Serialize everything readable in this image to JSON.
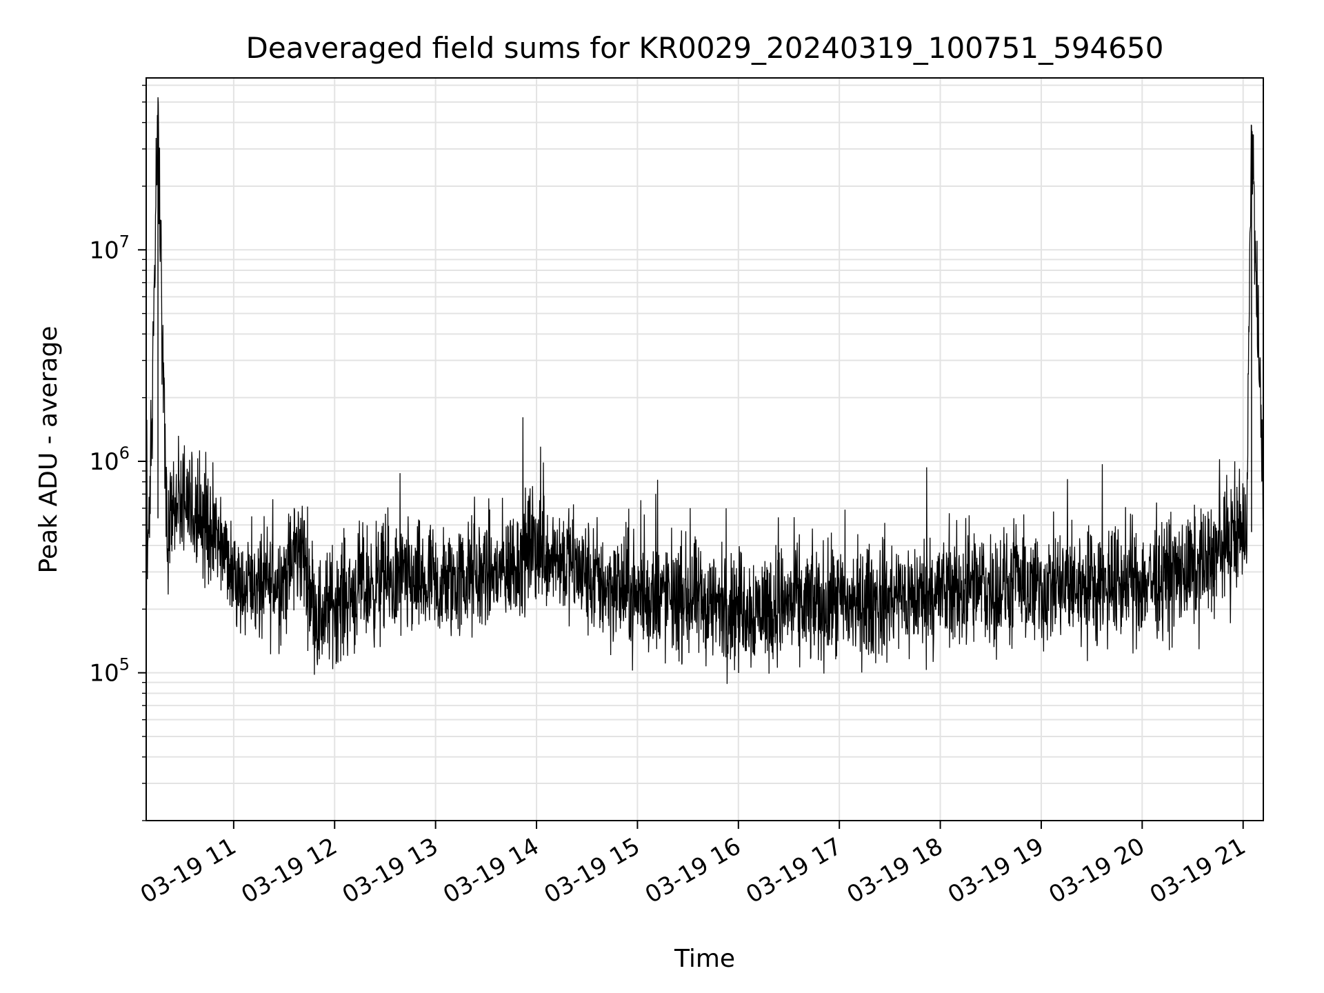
{
  "chart_data": {
    "type": "line",
    "title": "Deaveraged field sums for KR0029_20240319_100751_594650",
    "xlabel": "Time",
    "ylabel": "Peak ADU - average",
    "yscale": "log",
    "ylim": [
      20000,
      65000000
    ],
    "xlim": [
      "2024-03-19T10:08",
      "2024-03-19T21:12"
    ],
    "x_ticks": [
      "03-19 11",
      "03-19 12",
      "03-19 13",
      "03-19 14",
      "03-19 15",
      "03-19 16",
      "03-19 17",
      "03-19 18",
      "03-19 19",
      "03-19 20",
      "03-19 21"
    ],
    "y_ticks": [
      {
        "value": 100000,
        "base": "10",
        "exp": "5"
      },
      {
        "value": 1000000,
        "base": "10",
        "exp": "6"
      },
      {
        "value": 10000000,
        "base": "10",
        "exp": "7"
      }
    ],
    "grid": true,
    "line_color": "#000000",
    "series": [
      {
        "x": [
          "2024-03-19T10:08",
          "2024-03-19T10:10",
          "2024-03-19T10:15",
          "2024-03-19T10:20",
          "2024-03-19T10:30",
          "2024-03-19T10:45",
          "2024-03-19T11:00",
          "2024-03-19T11:15",
          "2024-03-19T11:30",
          "2024-03-19T11:40",
          "2024-03-19T11:50",
          "2024-03-19T12:00",
          "2024-03-19T12:20",
          "2024-03-19T12:40",
          "2024-03-19T13:00",
          "2024-03-19T13:20",
          "2024-03-19T13:40",
          "2024-03-19T14:00",
          "2024-03-19T14:15",
          "2024-03-19T14:30",
          "2024-03-19T15:00",
          "2024-03-19T15:30",
          "2024-03-19T16:00",
          "2024-03-19T16:30",
          "2024-03-19T17:00",
          "2024-03-19T17:30",
          "2024-03-19T18:00",
          "2024-03-19T18:30",
          "2024-03-19T19:00",
          "2024-03-19T19:30",
          "2024-03-19T20:00",
          "2024-03-19T20:30",
          "2024-03-19T20:50",
          "2024-03-19T21:02",
          "2024-03-19T21:05",
          "2024-03-19T21:12"
        ],
        "y": [
          380000,
          550000,
          43000000,
          500000,
          600000,
          500000,
          300000,
          250000,
          280000,
          400000,
          180000,
          220000,
          260000,
          270000,
          250000,
          280000,
          300000,
          400000,
          350000,
          280000,
          230000,
          220000,
          200000,
          210000,
          210000,
          220000,
          240000,
          250000,
          250000,
          260000,
          270000,
          300000,
          400000,
          480000,
          37000000,
          700000
        ],
        "noise_band_factor": 2.6
      }
    ]
  }
}
